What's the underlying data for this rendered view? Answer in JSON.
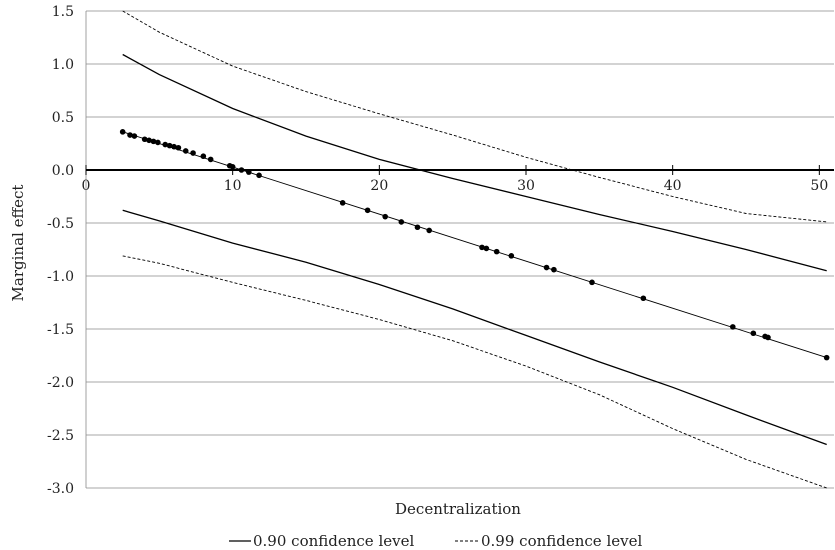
{
  "chart_data": {
    "type": "line",
    "title": "",
    "xlabel": "Decentralization",
    "ylabel": "Marginal effect",
    "xlim": [
      0,
      51
    ],
    "ylim": [
      -3.0,
      1.5
    ],
    "x_ticks": [
      0,
      10,
      20,
      30,
      40,
      50
    ],
    "y_ticks": [
      1.5,
      1.0,
      0.5,
      0.0,
      -0.5,
      -1.0,
      -1.5,
      -2.0,
      -2.5,
      -3.0
    ],
    "x_tick_labels": [
      "0",
      "10",
      "20",
      "30",
      "40",
      "50"
    ],
    "y_tick_labels": [
      "1.5",
      "1.0",
      "0.5",
      "0.0",
      "-0.5",
      "-1.0",
      "-1.5",
      "-2.0",
      "-2.5",
      "-3.0"
    ],
    "grid": "horizontal",
    "legend_position": "bottom",
    "legend": [
      {
        "label": "0.90 confidence level",
        "style": "solid"
      },
      {
        "label": "0.99 confidence level",
        "style": "dashed"
      }
    ],
    "series": [
      {
        "role": "marginal-effect",
        "style": "solid-with-markers",
        "x": [
          2.5,
          50.5
        ],
        "y": [
          0.36,
          -1.77
        ]
      },
      {
        "role": "ci90-upper",
        "style": "solid",
        "x": [
          2.5,
          5,
          10,
          15,
          20,
          25,
          30,
          35,
          40,
          45,
          50.5
        ],
        "y": [
          1.09,
          0.9,
          0.58,
          0.32,
          0.1,
          -0.08,
          -0.25,
          -0.42,
          -0.58,
          -0.75,
          -0.95
        ]
      },
      {
        "role": "ci90-lower",
        "style": "solid",
        "x": [
          2.5,
          5,
          10,
          15,
          20,
          25,
          30,
          35,
          40,
          45,
          50.5
        ],
        "y": [
          -0.38,
          -0.48,
          -0.69,
          -0.87,
          -1.08,
          -1.31,
          -1.56,
          -1.81,
          -2.05,
          -2.31,
          -2.59
        ]
      },
      {
        "role": "ci99-upper",
        "style": "dashed",
        "x": [
          2.5,
          5,
          10,
          15,
          20,
          25,
          30,
          35,
          40,
          45,
          50.5
        ],
        "y": [
          1.5,
          1.3,
          0.98,
          0.74,
          0.53,
          0.33,
          0.12,
          -0.07,
          -0.25,
          -0.41,
          -0.49
        ]
      },
      {
        "role": "ci99-lower",
        "style": "dashed",
        "x": [
          2.5,
          5,
          10,
          15,
          20,
          25,
          30,
          35,
          40,
          45,
          50.5
        ],
        "y": [
          -0.81,
          -0.88,
          -1.06,
          -1.23,
          -1.41,
          -1.61,
          -1.85,
          -2.12,
          -2.44,
          -2.73,
          -3.0
        ]
      }
    ],
    "points": {
      "x": [
        2.5,
        3.0,
        3.3,
        4.0,
        4.3,
        4.6,
        4.9,
        5.4,
        5.7,
        6.0,
        6.3,
        6.8,
        7.3,
        8.0,
        8.5,
        9.8,
        10.0,
        10.6,
        11.1,
        11.8,
        17.5,
        19.2,
        20.4,
        21.5,
        22.6,
        23.4,
        27.0,
        27.3,
        28.0,
        29.0,
        31.4,
        31.9,
        34.5,
        38.0,
        44.1,
        45.5,
        46.3,
        46.5,
        50.5
      ],
      "y": [
        0.36,
        0.33,
        0.32,
        0.29,
        0.28,
        0.27,
        0.26,
        0.24,
        0.23,
        0.22,
        0.21,
        0.18,
        0.16,
        0.13,
        0.1,
        0.04,
        0.03,
        0.0,
        -0.02,
        -0.05,
        -0.31,
        -0.38,
        -0.44,
        -0.49,
        -0.54,
        -0.57,
        -0.73,
        -0.74,
        -0.77,
        -0.81,
        -0.92,
        -0.94,
        -1.06,
        -1.21,
        -1.48,
        -1.54,
        -1.57,
        -1.58,
        -1.77
      ]
    }
  }
}
